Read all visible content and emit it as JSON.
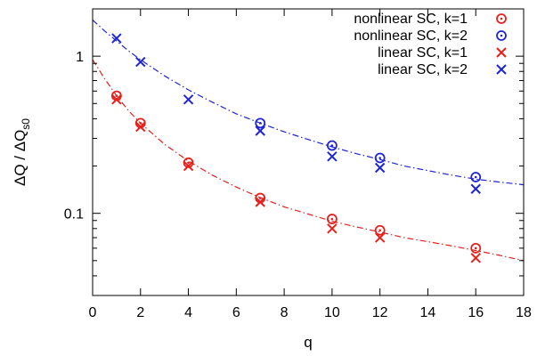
{
  "chart_data": {
    "type": "scatter",
    "xlabel": "q",
    "ylabel": {
      "main": "ΔQ / ΔQ",
      "sub": "s0"
    },
    "xlim": [
      0,
      18
    ],
    "ylim": [
      0.03,
      2.0
    ],
    "yscale": "log",
    "grid": false,
    "legend_position": "top-right",
    "x_ticks": [
      0,
      2,
      4,
      6,
      8,
      10,
      12,
      14,
      16,
      18
    ],
    "x_tick_labels": [
      "0",
      "2",
      "4",
      "6",
      "8",
      "10",
      "12",
      "14",
      "16",
      "18"
    ],
    "y_ticks": [
      0.1,
      1
    ],
    "y_tick_labels": [
      "0.1",
      "1"
    ],
    "series": [
      {
        "name": "nonlinear SC, k=1",
        "marker": "circle-dot",
        "color": "#e8201c",
        "x": [
          1,
          2,
          4,
          7,
          10,
          12,
          16
        ],
        "y": [
          0.56,
          0.375,
          0.21,
          0.125,
          0.092,
          0.078,
          0.06
        ]
      },
      {
        "name": "nonlinear SC, k=2",
        "marker": "circle-dot",
        "color": "#1f25d6",
        "x": [
          7,
          10,
          12,
          16
        ],
        "y": [
          0.375,
          0.27,
          0.225,
          0.17
        ]
      },
      {
        "name": "linear SC, k=1",
        "marker": "x",
        "color": "#e8201c",
        "x": [
          1,
          2,
          4,
          7,
          10,
          12,
          16
        ],
        "y": [
          0.53,
          0.355,
          0.2,
          0.118,
          0.08,
          0.07,
          0.052
        ]
      },
      {
        "name": "linear SC, k=2",
        "marker": "x",
        "color": "#1f25d6",
        "x": [
          1,
          2,
          4,
          7,
          10,
          12,
          16
        ],
        "y": [
          1.3,
          0.92,
          0.53,
          0.335,
          0.23,
          0.195,
          0.143
        ]
      }
    ],
    "fit_lines": [
      {
        "color": "#e8201c",
        "style": "dash-dot",
        "x": [
          0,
          0.5,
          1,
          1.5,
          2,
          3,
          4,
          5,
          6,
          7,
          8,
          9,
          10,
          11,
          12,
          13,
          14,
          15,
          16,
          17,
          18
        ],
        "y": [
          0.95,
          0.72,
          0.56,
          0.45,
          0.375,
          0.275,
          0.215,
          0.175,
          0.147,
          0.126,
          0.11,
          0.099,
          0.089,
          0.082,
          0.076,
          0.07,
          0.066,
          0.062,
          0.058,
          0.054,
          0.05
        ]
      },
      {
        "color": "#1f25d6",
        "style": "dash-dot",
        "x": [
          0,
          0.5,
          1,
          1.5,
          2,
          3,
          4,
          5,
          6,
          7,
          8,
          9,
          10,
          11,
          12,
          13,
          14,
          15,
          16,
          17,
          18
        ],
        "y": [
          1.7,
          1.45,
          1.25,
          1.08,
          0.95,
          0.75,
          0.61,
          0.51,
          0.43,
          0.375,
          0.33,
          0.295,
          0.265,
          0.24,
          0.22,
          0.2,
          0.187,
          0.175,
          0.165,
          0.158,
          0.152
        ]
      }
    ]
  }
}
